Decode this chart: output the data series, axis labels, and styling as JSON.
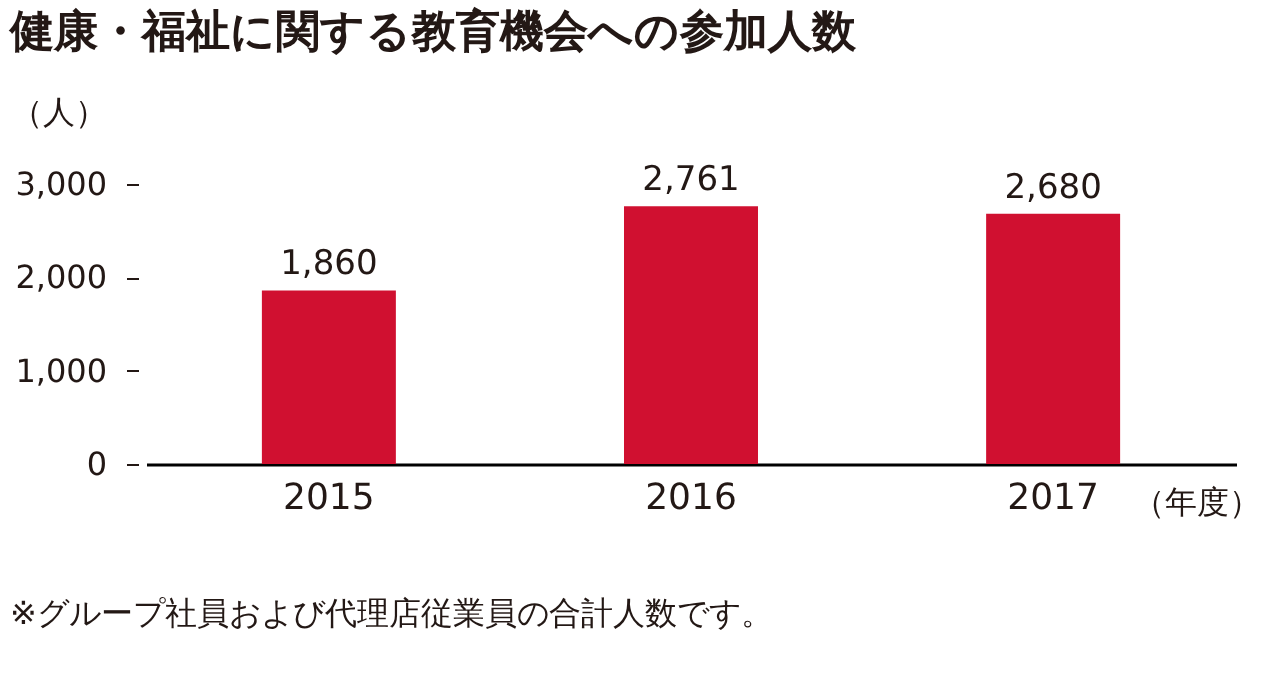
{
  "chart_data": {
    "type": "bar",
    "title": "健康・福祉に関する教育機会への参加人数",
    "ylabel": "（人）",
    "xlabel": "（年度）",
    "categories": [
      "2015",
      "2016",
      "2017"
    ],
    "values": [
      1860,
      2761,
      2680
    ],
    "value_labels": [
      "1,860",
      "2,761",
      "2,680"
    ],
    "color": "#d01030",
    "ylim": [
      0,
      3000
    ],
    "yticks": [
      0,
      {
        "value": 1000,
        "label": "1,000"
      },
      {
        "value": 2000,
        "label": "2,000"
      },
      {
        "value": 3000,
        "label": "3,000"
      }
    ],
    "annotations": [
      "※グループ社員および代理店従業員の合計人数です。"
    ]
  }
}
